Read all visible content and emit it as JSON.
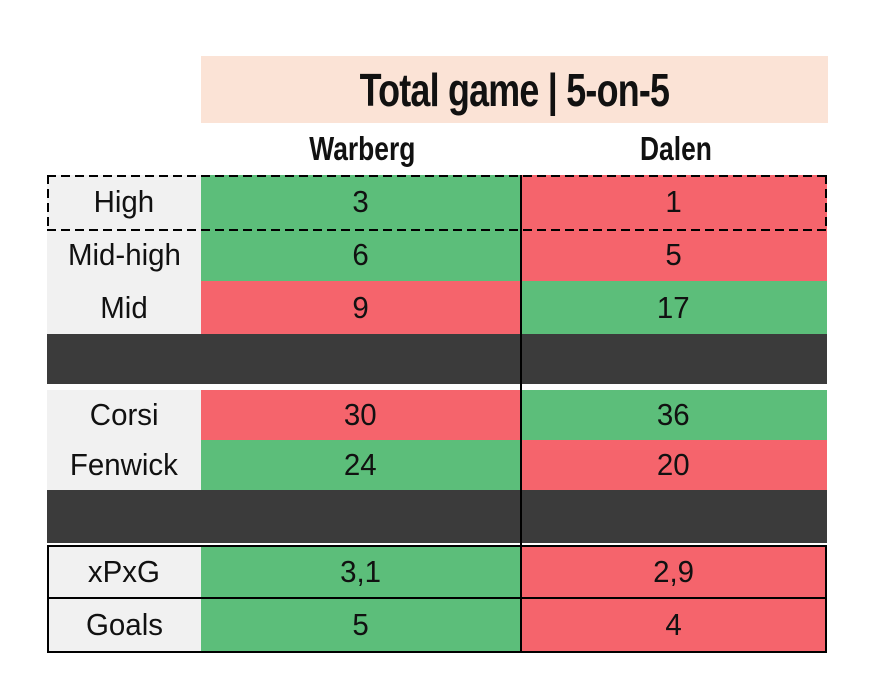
{
  "title": {
    "text": "Total game | 5-on-5"
  },
  "columns": [
    {
      "label": "Warberg"
    },
    {
      "label": "Dalen"
    }
  ],
  "colors": {
    "win": "#5cbe7a",
    "loss": "#f5646c",
    "separator_band": "#3b3b3b",
    "label_bg": "#f1f1f1",
    "title_bg": "#fbe3d6",
    "border": "#000000",
    "background": "#ffffff"
  },
  "rows": [
    {
      "label": "High",
      "warberg": {
        "value": "3",
        "state": "win"
      },
      "dalen": {
        "value": "1",
        "state": "loss"
      },
      "highlighted": "dashed-border"
    },
    {
      "label": "Mid-high",
      "warberg": {
        "value": "6",
        "state": "win"
      },
      "dalen": {
        "value": "5",
        "state": "loss"
      }
    },
    {
      "label": "Mid",
      "warberg": {
        "value": "9",
        "state": "loss"
      },
      "dalen": {
        "value": "17",
        "state": "win"
      }
    },
    {
      "label": "Corsi",
      "warberg": {
        "value": "30",
        "state": "loss"
      },
      "dalen": {
        "value": "36",
        "state": "win"
      }
    },
    {
      "label": "Fenwick",
      "warberg": {
        "value": "24",
        "state": "win"
      },
      "dalen": {
        "value": "20",
        "state": "loss"
      }
    },
    {
      "label": "xPxG",
      "warberg": {
        "value": "3,1",
        "state": "win"
      },
      "dalen": {
        "value": "2,9",
        "state": "loss"
      },
      "boxed": "solid-border"
    },
    {
      "label": "Goals",
      "warberg": {
        "value": "5",
        "state": "win"
      },
      "dalen": {
        "value": "4",
        "state": "loss"
      },
      "boxed": "solid-border"
    }
  ],
  "chart_data": {
    "type": "table",
    "title": "Total game | 5-on-5",
    "columns": [
      "Warberg",
      "Dalen"
    ],
    "row_labels": [
      "High",
      "Mid-high",
      "Mid",
      "Corsi",
      "Fenwick",
      "xPxG",
      "Goals"
    ],
    "series": [
      {
        "name": "Warberg",
        "values": [
          3,
          6,
          9,
          30,
          24,
          3.1,
          5
        ]
      },
      {
        "name": "Dalen",
        "values": [
          1,
          5,
          17,
          36,
          20,
          2.9,
          4
        ]
      }
    ],
    "cell_colors": {
      "Warberg": [
        "green",
        "green",
        "red",
        "red",
        "green",
        "green",
        "green"
      ],
      "Dalen": [
        "red",
        "red",
        "green",
        "green",
        "red",
        "red",
        "red"
      ]
    },
    "notes": "green cell = highlighted (better) value, red cell = lower value; High row outlined with dashed border; xPxG and Goals rows enclosed in solid black box; two dark separator bands between shot-quality rows, Corsi/Fenwick rows and bottom summary rows"
  }
}
